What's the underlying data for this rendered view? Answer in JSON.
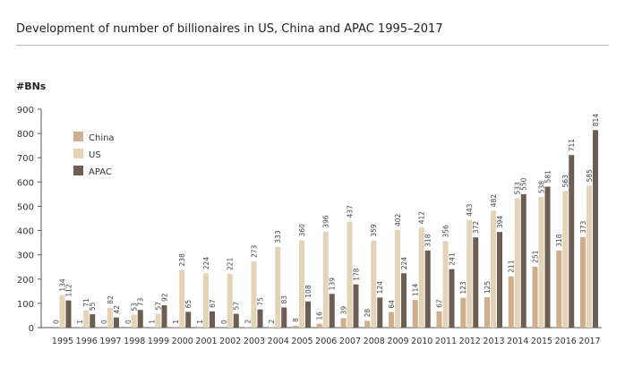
{
  "chart_data": {
    "type": "bar",
    "title": "Development of number of billionaires in US, China and APAC 1995–2017",
    "ylabel": "#BNs",
    "xlabel": "",
    "ylim": [
      0,
      900
    ],
    "yticks": [
      0,
      100,
      200,
      300,
      400,
      500,
      600,
      700,
      800,
      900
    ],
    "grid": false,
    "legend_position": "top-left",
    "categories": [
      "1995",
      "1996",
      "1997",
      "1998",
      "1999",
      "2000",
      "2001",
      "2002",
      "2003",
      "2004",
      "2005",
      "2006",
      "2007",
      "2008",
      "2009",
      "2010",
      "2011",
      "2012",
      "2013",
      "2014",
      "2015",
      "2016",
      "2017"
    ],
    "series": [
      {
        "name": "China",
        "color": "#cfae8e",
        "values": [
          0,
          1,
          0,
          0,
          1,
          1,
          1,
          0,
          2,
          2,
          8,
          16,
          39,
          28,
          64,
          114,
          67,
          123,
          125,
          211,
          251,
          318,
          373
        ]
      },
      {
        "name": "US",
        "color": "#e5d3b8",
        "values": [
          134,
          71,
          82,
          53,
          57,
          238,
          224,
          221,
          273,
          333,
          360,
          396,
          437,
          359,
          402,
          412,
          356,
          443,
          482,
          533,
          538,
          563,
          585
        ]
      },
      {
        "name": "APAC",
        "color": "#6c5e53",
        "values": [
          112,
          55,
          42,
          73,
          92,
          65,
          67,
          57,
          75,
          83,
          108,
          139,
          178,
          124,
          224,
          318,
          241,
          372,
          394,
          550,
          581,
          711,
          814
        ]
      }
    ]
  }
}
